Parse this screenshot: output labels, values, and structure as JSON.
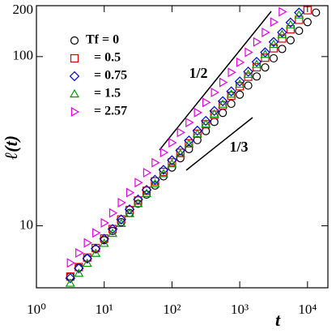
{
  "chart_data": {
    "type": "scatter",
    "xlabel": "t",
    "ylabel": "ℓ(t)",
    "xscale": "log",
    "yscale": "log",
    "xlim": [
      1,
      20000
    ],
    "ylim": [
      4.3,
      200
    ],
    "xticks": [
      {
        "value": 1,
        "label": "10⁰"
      },
      {
        "value": 10,
        "label": "10¹"
      },
      {
        "value": 100,
        "label": "10²"
      },
      {
        "value": 1000,
        "label": "10³"
      },
      {
        "value": 10000,
        "label": "10⁴"
      }
    ],
    "yticks": [
      10,
      100,
      200
    ],
    "legend": "upper left",
    "annotations": [
      "1/2",
      "1/3"
    ],
    "x": [
      3.16,
      4.22,
      5.62,
      7.5,
      10,
      13.3,
      17.8,
      23.7,
      31.6,
      42.2,
      56.2,
      75,
      100,
      133,
      178,
      237,
      316,
      422,
      562,
      750,
      1000,
      1334,
      1778,
      2371,
      3162,
      4217,
      5623,
      7499,
      10000,
      13335,
      17783
    ],
    "series": [
      {
        "name": "Tf = 0",
        "color": "#000000",
        "marker": "o",
        "values": [
          5.01,
          5.67,
          6.42,
          7.27,
          8.22,
          9.31,
          10.5,
          11.9,
          13.5,
          15.3,
          17.3,
          19.6,
          22.1,
          25.1,
          28.4,
          32.1,
          36.3,
          41.1,
          46.5,
          52.6,
          59.6,
          67.4,
          76.3,
          86.3,
          97.7,
          111,
          125,
          142,
          160,
          182,
          null
        ]
      },
      {
        "name": "= 0.5",
        "color": "#e00000",
        "marker": "s",
        "values": [
          5.01,
          5.7,
          6.49,
          7.39,
          8.41,
          9.57,
          10.9,
          12.4,
          14.1,
          16.1,
          18.3,
          20.8,
          23.7,
          27.0,
          30.7,
          35.0,
          39.8,
          45.3,
          51.6,
          58.7,
          66.8,
          76.0,
          86.5,
          98.5,
          112,
          128,
          145,
          165,
          188,
          null,
          null
        ]
      },
      {
        "name": "= 0.75",
        "color": "#0000cc",
        "marker": "D",
        "values": [
          4.9,
          5.6,
          6.4,
          7.32,
          8.37,
          9.57,
          10.9,
          12.5,
          14.3,
          16.3,
          18.7,
          21.4,
          24.4,
          27.9,
          31.9,
          36.5,
          41.7,
          47.7,
          54.5,
          62.3,
          71.3,
          81.5,
          93.1,
          106,
          122,
          139,
          159,
          182,
          null,
          null,
          null
        ]
      },
      {
        "name": "= 1.5",
        "color": "#009900",
        "marker": "^",
        "values": [
          4.57,
          5.23,
          5.99,
          6.86,
          7.86,
          9.0,
          10.3,
          11.8,
          13.5,
          15.5,
          17.7,
          20.3,
          23.2,
          26.6,
          30.4,
          34.9,
          39.9,
          45.7,
          52.3,
          59.9,
          68.6,
          78.5,
          89.9,
          103,
          118,
          135,
          154,
          176,
          null,
          null,
          null
        ]
      },
      {
        "name": "= 2.57",
        "color": "#e000e0",
        "marker": ">",
        "values": [
          6.03,
          6.91,
          7.92,
          9.08,
          10.4,
          11.9,
          13.7,
          15.7,
          18.0,
          20.6,
          23.6,
          27.1,
          31.0,
          35.6,
          40.8,
          46.7,
          53.6,
          61.4,
          70.4,
          80.7,
          92.5,
          106,
          122,
          139,
          160,
          184,
          null,
          null,
          null,
          null,
          null
        ]
      }
    ]
  }
}
